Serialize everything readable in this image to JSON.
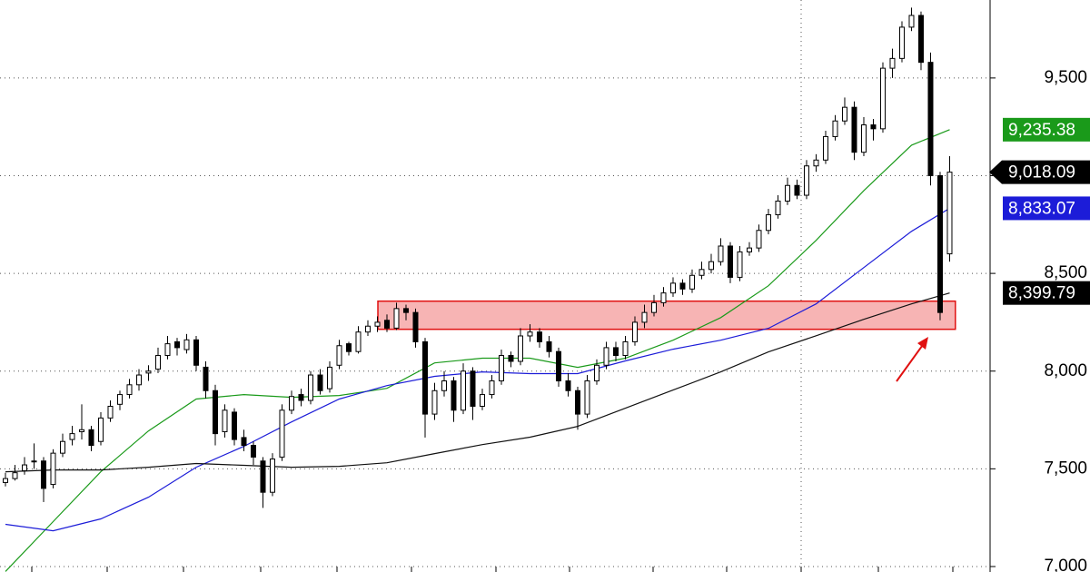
{
  "chart_data": {
    "type": "candlestick",
    "xlim": [
      -0.571,
      103.24
    ],
    "ylim": [
      6972,
      9899
    ],
    "yticks": [
      {
        "value": 7000,
        "label": "7,000"
      },
      {
        "value": 7500,
        "label": "7,500"
      },
      {
        "value": 8000,
        "label": "8,000"
      },
      {
        "value": 8500,
        "label": "8,500"
      },
      {
        "value": 9000,
        "label": "9,000"
      },
      {
        "value": 9500,
        "label": "9,500"
      }
    ],
    "grid": true,
    "up_color": "#ffffff",
    "down_color": "#000000",
    "ohlc": [
      [
        7430,
        7480,
        7410,
        7450
      ],
      [
        7450,
        7520,
        7440,
        7480
      ],
      [
        7490,
        7560,
        7470,
        7520
      ],
      [
        7540,
        7630,
        7500,
        7540
      ],
      [
        7540,
        7560,
        7330,
        7400
      ],
      [
        7420,
        7600,
        7400,
        7580
      ],
      [
        7580,
        7680,
        7560,
        7640
      ],
      [
        7650,
        7720,
        7620,
        7680
      ],
      [
        7690,
        7830,
        7650,
        7700
      ],
      [
        7700,
        7720,
        7590,
        7620
      ],
      [
        7640,
        7790,
        7620,
        7760
      ],
      [
        7760,
        7850,
        7740,
        7820
      ],
      [
        7830,
        7900,
        7800,
        7880
      ],
      [
        7880,
        7960,
        7860,
        7930
      ],
      [
        7930,
        8010,
        7900,
        7980
      ],
      [
        7990,
        8030,
        7950,
        8000
      ],
      [
        8010,
        8120,
        7990,
        8080
      ],
      [
        8080,
        8180,
        8060,
        8140
      ],
      [
        8150,
        8170,
        8080,
        8120
      ],
      [
        8110,
        8190,
        8090,
        8160
      ],
      [
        8160,
        8180,
        8000,
        8030
      ],
      [
        8020,
        8050,
        7860,
        7900
      ],
      [
        7900,
        7930,
        7620,
        7680
      ],
      [
        7690,
        7830,
        7660,
        7800
      ],
      [
        7790,
        7810,
        7620,
        7650
      ],
      [
        7660,
        7700,
        7590,
        7620
      ],
      [
        7620,
        7640,
        7520,
        7560
      ],
      [
        7540,
        7560,
        7300,
        7380
      ],
      [
        7380,
        7580,
        7360,
        7550
      ],
      [
        7560,
        7830,
        7540,
        7800
      ],
      [
        7800,
        7900,
        7780,
        7870
      ],
      [
        7880,
        7910,
        7820,
        7850
      ],
      [
        7850,
        8000,
        7830,
        7980
      ],
      [
        7980,
        8010,
        7880,
        7900
      ],
      [
        7910,
        8050,
        7890,
        8020
      ],
      [
        8030,
        8160,
        8010,
        8130
      ],
      [
        8140,
        8150,
        8080,
        8100
      ],
      [
        8100,
        8230,
        8090,
        8200
      ],
      [
        8200,
        8260,
        8180,
        8230
      ],
      [
        8230,
        8280,
        8200,
        8250
      ],
      [
        8260,
        8290,
        8200,
        8220
      ],
      [
        8220,
        8350,
        8210,
        8320
      ],
      [
        8320,
        8340,
        8260,
        8300
      ],
      [
        8300,
        8320,
        8120,
        8150
      ],
      [
        8150,
        8170,
        7660,
        7780
      ],
      [
        7780,
        7940,
        7750,
        7900
      ],
      [
        7900,
        8000,
        7870,
        7950
      ],
      [
        7950,
        7970,
        7740,
        7800
      ],
      [
        7800,
        8040,
        7780,
        8000
      ],
      [
        8000,
        8020,
        7750,
        7820
      ],
      [
        7820,
        7910,
        7800,
        7880
      ],
      [
        7880,
        7980,
        7860,
        7950
      ],
      [
        7950,
        8110,
        7930,
        8080
      ],
      [
        8080,
        8100,
        8020,
        8050
      ],
      [
        8050,
        8220,
        8030,
        8180
      ],
      [
        8180,
        8240,
        8150,
        8200
      ],
      [
        8200,
        8220,
        8120,
        8150
      ],
      [
        8150,
        8180,
        8070,
        8100
      ],
      [
        8100,
        8120,
        7920,
        7950
      ],
      [
        7950,
        7990,
        7870,
        7900
      ],
      [
        7900,
        7920,
        7700,
        7780
      ],
      [
        7780,
        7980,
        7760,
        7950
      ],
      [
        7950,
        8060,
        7930,
        8030
      ],
      [
        8030,
        8150,
        8010,
        8120
      ],
      [
        8120,
        8150,
        8050,
        8080
      ],
      [
        8080,
        8180,
        8060,
        8150
      ],
      [
        8150,
        8280,
        8130,
        8250
      ],
      [
        8250,
        8340,
        8220,
        8300
      ],
      [
        8300,
        8390,
        8280,
        8350
      ],
      [
        8350,
        8430,
        8330,
        8400
      ],
      [
        8400,
        8480,
        8380,
        8450
      ],
      [
        8450,
        8470,
        8390,
        8420
      ],
      [
        8420,
        8520,
        8400,
        8490
      ],
      [
        8490,
        8560,
        8470,
        8520
      ],
      [
        8520,
        8600,
        8500,
        8560
      ],
      [
        8560,
        8680,
        8540,
        8640
      ],
      [
        8640,
        8660,
        8450,
        8480
      ],
      [
        8480,
        8640,
        8460,
        8610
      ],
      [
        8610,
        8660,
        8590,
        8630
      ],
      [
        8630,
        8750,
        8610,
        8720
      ],
      [
        8720,
        8830,
        8700,
        8800
      ],
      [
        8800,
        8900,
        8780,
        8870
      ],
      [
        8870,
        8990,
        8850,
        8950
      ],
      [
        8950,
        8980,
        8880,
        8900
      ],
      [
        8900,
        9080,
        8880,
        9050
      ],
      [
        9050,
        9110,
        9020,
        9080
      ],
      [
        9080,
        9230,
        9060,
        9200
      ],
      [
        9200,
        9310,
        9180,
        9280
      ],
      [
        9280,
        9400,
        9260,
        9350
      ],
      [
        9350,
        9380,
        9080,
        9120
      ],
      [
        9120,
        9300,
        9100,
        9260
      ],
      [
        9260,
        9290,
        9180,
        9240
      ],
      [
        9240,
        9580,
        9220,
        9550
      ],
      [
        9550,
        9650,
        9500,
        9600
      ],
      [
        9600,
        9790,
        9580,
        9760
      ],
      [
        9760,
        9860,
        9740,
        9820
      ],
      [
        9820,
        9840,
        9540,
        9580
      ],
      [
        9580,
        9630,
        8950,
        9000
      ],
      [
        9000,
        9020,
        8260,
        8300
      ],
      [
        8600,
        9100,
        8560,
        9018.09
      ]
    ],
    "lines": [
      {
        "color": "#1a9a1a",
        "x": [
          0,
          5,
          10,
          15,
          20,
          25,
          30,
          35,
          40,
          45,
          50,
          55,
          60,
          65,
          70,
          75,
          80,
          85,
          90,
          95,
          99
        ],
        "values": [
          6975,
          7230,
          7485,
          7694,
          7857,
          7880,
          7866,
          7875,
          7912,
          8042,
          8066,
          8066,
          8019,
          8066,
          8158,
          8274,
          8437,
          8669,
          8924,
          9156,
          9235.38
        ]
      },
      {
        "color": "#1c1cd8",
        "x": [
          0,
          5,
          10,
          15,
          20,
          25,
          30,
          35,
          40,
          45,
          50,
          55,
          60,
          65,
          70,
          75,
          80,
          85,
          90,
          95,
          99
        ],
        "values": [
          7216,
          7183,
          7244,
          7355,
          7508,
          7615,
          7740,
          7857,
          7926,
          7973,
          7996,
          7987,
          7987,
          8052,
          8112,
          8158,
          8219,
          8344,
          8530,
          8715,
          8833.07
        ]
      },
      {
        "color": "#111111",
        "x": [
          0,
          5,
          10,
          15,
          20,
          25,
          30,
          35,
          40,
          45,
          50,
          55,
          60,
          65,
          70,
          75,
          80,
          85,
          90,
          95,
          99
        ],
        "values": [
          7485,
          7494,
          7494,
          7508,
          7527,
          7518,
          7508,
          7513,
          7531,
          7578,
          7624,
          7662,
          7717,
          7810,
          7903,
          7996,
          8098,
          8181,
          8265,
          8344,
          8399.79
        ]
      }
    ],
    "price_labels": [
      {
        "value": 9235.38,
        "label": "9,235.38",
        "color": "#1a9a1a"
      },
      {
        "value": 9018.09,
        "label": "9,018.09",
        "color": "#000000"
      },
      {
        "value": 8833.07,
        "label": "8,833.07",
        "color": "#1c1cd8"
      },
      {
        "value": 8399.79,
        "label": "8,399.79",
        "color": "#000000"
      }
    ],
    "highlight": {
      "x": [
        39.05,
        99.6
      ],
      "y": [
        8214,
        8358
      ],
      "color": "#f7b4b4",
      "border": "#e01010"
    }
  }
}
